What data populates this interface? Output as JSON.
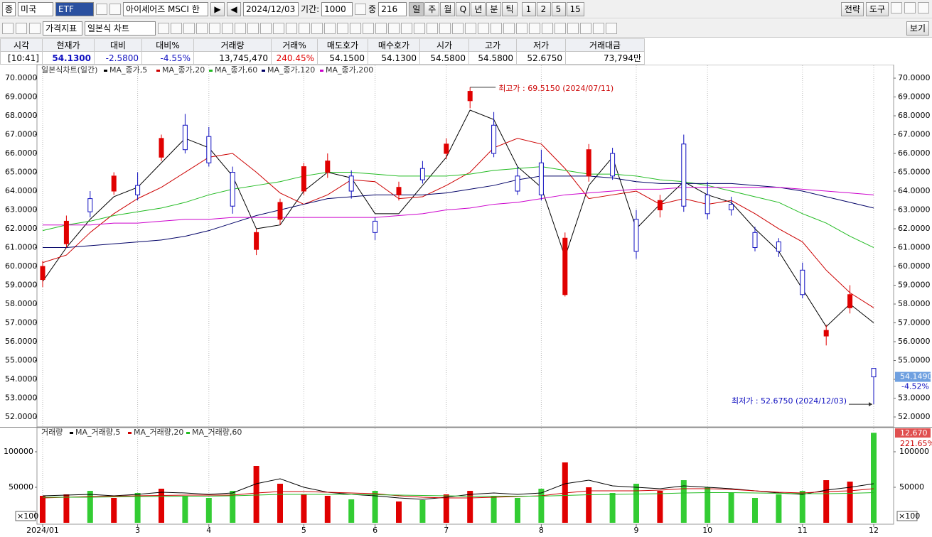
{
  "toolbar": {
    "market": "종",
    "country": "미국",
    "code": "ETF",
    "name": "아이셰어즈 MSCI 한",
    "date": "2024/12/03",
    "period_label": "기간:",
    "period": "1000",
    "mid_label": "중",
    "mid": "216",
    "intervals": [
      "일",
      "주",
      "월",
      "Q",
      "년",
      "분",
      "틱"
    ],
    "minutes": [
      "1",
      "2",
      "5",
      "15"
    ],
    "strategy": "전략",
    "tools": "도구",
    "indicator": "가격지표",
    "chart_style": "일본식 차트",
    "view": "보기"
  },
  "quote": {
    "headers": [
      "시각",
      "현재가",
      "대비",
      "대비%",
      "거래량",
      "거래%",
      "매도호가",
      "매수호가",
      "시가",
      "고가",
      "저가",
      "거래대금"
    ],
    "values": [
      "[10:41]",
      "54.1300",
      "-2.5800",
      "-4.55%",
      "13,745,470",
      "240.45%",
      "54.1500",
      "54.1300",
      "54.5800",
      "54.5800",
      "52.6750",
      "73,794만"
    ]
  },
  "chart_data": [
    {
      "type": "candlestick",
      "title": "일본식차트(일간)",
      "categories": [
        "2024/01",
        null,
        null,
        null,
        "3",
        null,
        null,
        "4",
        null,
        null,
        null,
        "5",
        null,
        null,
        "6",
        null,
        null,
        "7",
        null,
        null,
        null,
        "8",
        null,
        null,
        null,
        "9",
        null,
        null,
        "10",
        null,
        null,
        null,
        "11",
        null,
        null,
        "12"
      ],
      "open": [
        59.3,
        61.2,
        63.6,
        64.0,
        64.3,
        65.8,
        67.5,
        66.9,
        65.0,
        60.9,
        62.5,
        64.0,
        65.0,
        64.8,
        62.4,
        63.8,
        65.2,
        66.0,
        68.8,
        67.5,
        64.8,
        65.5,
        58.5,
        64.8,
        66.0,
        62.5,
        63.0,
        66.5,
        63.8,
        63.3,
        61.8,
        61.3,
        59.8,
        56.3,
        57.8,
        54.58
      ],
      "high": [
        60.3,
        62.7,
        64.0,
        65.0,
        65.0,
        67.0,
        68.1,
        67.4,
        65.3,
        62.0,
        63.6,
        65.5,
        66.0,
        65.1,
        62.6,
        64.5,
        65.6,
        66.8,
        69.515,
        68.2,
        65.3,
        66.2,
        61.8,
        66.5,
        66.3,
        63.0,
        63.8,
        67.0,
        64.5,
        63.7,
        62.1,
        61.5,
        60.2,
        56.9,
        59.0,
        54.58
      ],
      "low": [
        58.9,
        61.0,
        62.6,
        63.8,
        63.5,
        65.6,
        66.0,
        65.3,
        62.8,
        60.6,
        62.2,
        63.8,
        64.7,
        63.6,
        61.4,
        63.5,
        64.4,
        65.7,
        68.4,
        65.8,
        63.8,
        63.5,
        58.4,
        64.5,
        64.6,
        60.4,
        62.6,
        62.9,
        62.5,
        62.7,
        60.8,
        60.5,
        58.3,
        55.8,
        57.5,
        52.675
      ],
      "close": [
        60.0,
        62.4,
        62.9,
        64.8,
        63.8,
        66.8,
        66.2,
        65.5,
        63.2,
        61.8,
        63.4,
        65.3,
        65.6,
        64.0,
        61.8,
        64.2,
        64.6,
        66.5,
        69.3,
        66.0,
        64.0,
        63.8,
        61.5,
        66.2,
        64.8,
        60.8,
        63.5,
        63.2,
        62.8,
        63.0,
        61.0,
        60.8,
        58.5,
        56.6,
        58.5,
        54.13
      ],
      "up_color": "#e00000",
      "down_color": "#1010c0",
      "ylim": [
        51.51,
        70.68
      ],
      "yticks": [
        {
          "value": 52,
          "label": "52.0000"
        },
        {
          "value": 53,
          "label": "53.0000"
        },
        {
          "value": 54,
          "label": "54.0000"
        },
        {
          "value": 55,
          "label": "55.0000"
        },
        {
          "value": 56,
          "label": "56.0000"
        },
        {
          "value": 57,
          "label": "57.0000"
        },
        {
          "value": 58,
          "label": "58.0000"
        },
        {
          "value": 59,
          "label": "59.0000"
        },
        {
          "value": 60,
          "label": "60.0000"
        },
        {
          "value": 61,
          "label": "61.0000"
        },
        {
          "value": 62,
          "label": "62.0000"
        },
        {
          "value": 63,
          "label": "63.0000"
        },
        {
          "value": 64,
          "label": "64.0000"
        },
        {
          "value": 65,
          "label": "65.0000"
        },
        {
          "value": 66,
          "label": "66.0000"
        },
        {
          "value": 67,
          "label": "67.0000"
        },
        {
          "value": 68,
          "label": "68.0000"
        },
        {
          "value": 69,
          "label": "69.0000"
        },
        {
          "value": 70,
          "label": "70.0000"
        }
      ],
      "xgrid": true,
      "series": [
        {
          "name": "MA_종가,5",
          "color": "#000000",
          "values": [
            59.2,
            61.0,
            62.5,
            63.7,
            64.2,
            65.5,
            66.8,
            66.3,
            64.8,
            62.0,
            62.2,
            64.0,
            65.0,
            64.7,
            62.8,
            62.8,
            64.3,
            65.8,
            68.3,
            67.8,
            65.3,
            64.2,
            60.5,
            64.3,
            65.8,
            62.0,
            63.3,
            64.5,
            63.8,
            63.4,
            62.0,
            60.8,
            58.8,
            56.8,
            58.0,
            57.0
          ]
        },
        {
          "name": "MA_종가,20",
          "color": "#cc0000",
          "values": [
            60.2,
            60.6,
            61.8,
            62.8,
            63.6,
            64.2,
            65.0,
            65.8,
            66.0,
            65.0,
            63.9,
            63.3,
            63.8,
            64.6,
            64.5,
            63.6,
            63.7,
            64.3,
            65.0,
            66.3,
            66.8,
            66.5,
            65.2,
            63.6,
            63.8,
            64.0,
            63.3,
            63.6,
            63.3,
            63.5,
            62.8,
            62.0,
            61.3,
            59.8,
            58.6,
            57.8
          ]
        },
        {
          "name": "MA_종가,60",
          "color": "#22bb22",
          "values": [
            61.9,
            62.2,
            62.4,
            62.7,
            62.9,
            63.1,
            63.4,
            63.8,
            64.1,
            64.3,
            64.5,
            64.8,
            65.0,
            65.0,
            64.9,
            64.8,
            64.8,
            64.8,
            64.9,
            65.1,
            65.2,
            65.3,
            65.1,
            64.9,
            64.9,
            64.8,
            64.6,
            64.5,
            64.3,
            64.0,
            63.7,
            63.4,
            62.8,
            62.3,
            61.6,
            61.0
          ]
        },
        {
          "name": "MA_종가,120",
          "color": "#000066",
          "values": [
            61.0,
            61.0,
            61.1,
            61.2,
            61.3,
            61.4,
            61.6,
            61.9,
            62.3,
            62.7,
            63.0,
            63.3,
            63.6,
            63.7,
            63.8,
            63.8,
            63.8,
            63.9,
            64.1,
            64.3,
            64.6,
            64.8,
            64.8,
            64.8,
            64.7,
            64.5,
            64.4,
            64.4,
            64.4,
            64.4,
            64.3,
            64.2,
            64.0,
            63.7,
            63.4,
            63.1
          ]
        },
        {
          "name": "MA_종가,200",
          "color": "#cc00cc",
          "values": [
            62.2,
            62.2,
            62.2,
            62.3,
            62.3,
            62.4,
            62.5,
            62.5,
            62.6,
            62.6,
            62.6,
            62.6,
            62.6,
            62.6,
            62.6,
            62.7,
            62.8,
            63.0,
            63.1,
            63.3,
            63.4,
            63.6,
            63.8,
            63.9,
            64.0,
            64.1,
            64.1,
            64.2,
            64.2,
            64.2,
            64.2,
            64.2,
            64.1,
            64.0,
            63.9,
            63.8
          ]
        }
      ],
      "high_label": "최고가 : 69.5150 (2024/07/11)",
      "low_label": "최저가 : 52.6750 (2024/12/03)",
      "price_tag": "54.1490",
      "change_tag": "-4.52%"
    },
    {
      "type": "bar",
      "title": "거래량",
      "unit": "×100",
      "values": [
        38000,
        40000,
        45000,
        35000,
        42000,
        48000,
        38000,
        35000,
        45000,
        80000,
        55000,
        40000,
        38000,
        33000,
        45000,
        30000,
        32000,
        40000,
        45000,
        38000,
        35000,
        48000,
        85000,
        50000,
        42000,
        55000,
        45000,
        60000,
        50000,
        42000,
        35000,
        40000,
        45000,
        60000,
        58000,
        126700
      ],
      "up_color": "#e00000",
      "down_color": "#33cc33",
      "ylim": [
        0,
        133000
      ],
      "yticks": [
        50000,
        100000
      ],
      "series": [
        {
          "name": "MA_거래량,5",
          "color": "#000000",
          "values": [
            38000,
            39000,
            40000,
            38000,
            40000,
            43000,
            42000,
            40000,
            42000,
            55000,
            62000,
            50000,
            43000,
            40000,
            38000,
            35000,
            33000,
            36000,
            40000,
            42000,
            40000,
            42000,
            55000,
            60000,
            52000,
            50000,
            48000,
            52000,
            50000,
            48000,
            45000,
            42000,
            40000,
            46000,
            50000,
            55000
          ]
        },
        {
          "name": "MA_거래량,20",
          "color": "#cc0000",
          "values": [
            35000,
            36000,
            37000,
            37500,
            38000,
            38500,
            39000,
            39000,
            39000,
            42000,
            44000,
            44000,
            43000,
            42000,
            41000,
            38000,
            36000,
            35000,
            35000,
            36000,
            37000,
            38000,
            42000,
            45000,
            45000,
            45000,
            46000,
            48000,
            48000,
            47000,
            45000,
            43000,
            42000,
            44000,
            45000,
            48000
          ]
        },
        {
          "name": "MA_거래량,60",
          "color": "#22bb22",
          "values": [
            36000,
            36000,
            36000,
            36500,
            37000,
            37000,
            37500,
            37500,
            38000,
            39000,
            40000,
            40000,
            40000,
            40000,
            39500,
            39000,
            38500,
            38000,
            37500,
            37500,
            37500,
            37500,
            38500,
            39500,
            40000,
            40500,
            41000,
            42000,
            42500,
            42500,
            42000,
            41500,
            41000,
            41000,
            41500,
            42500
          ]
        }
      ],
      "value_tag": "12,670",
      "change_tag": "221.65%"
    }
  ]
}
